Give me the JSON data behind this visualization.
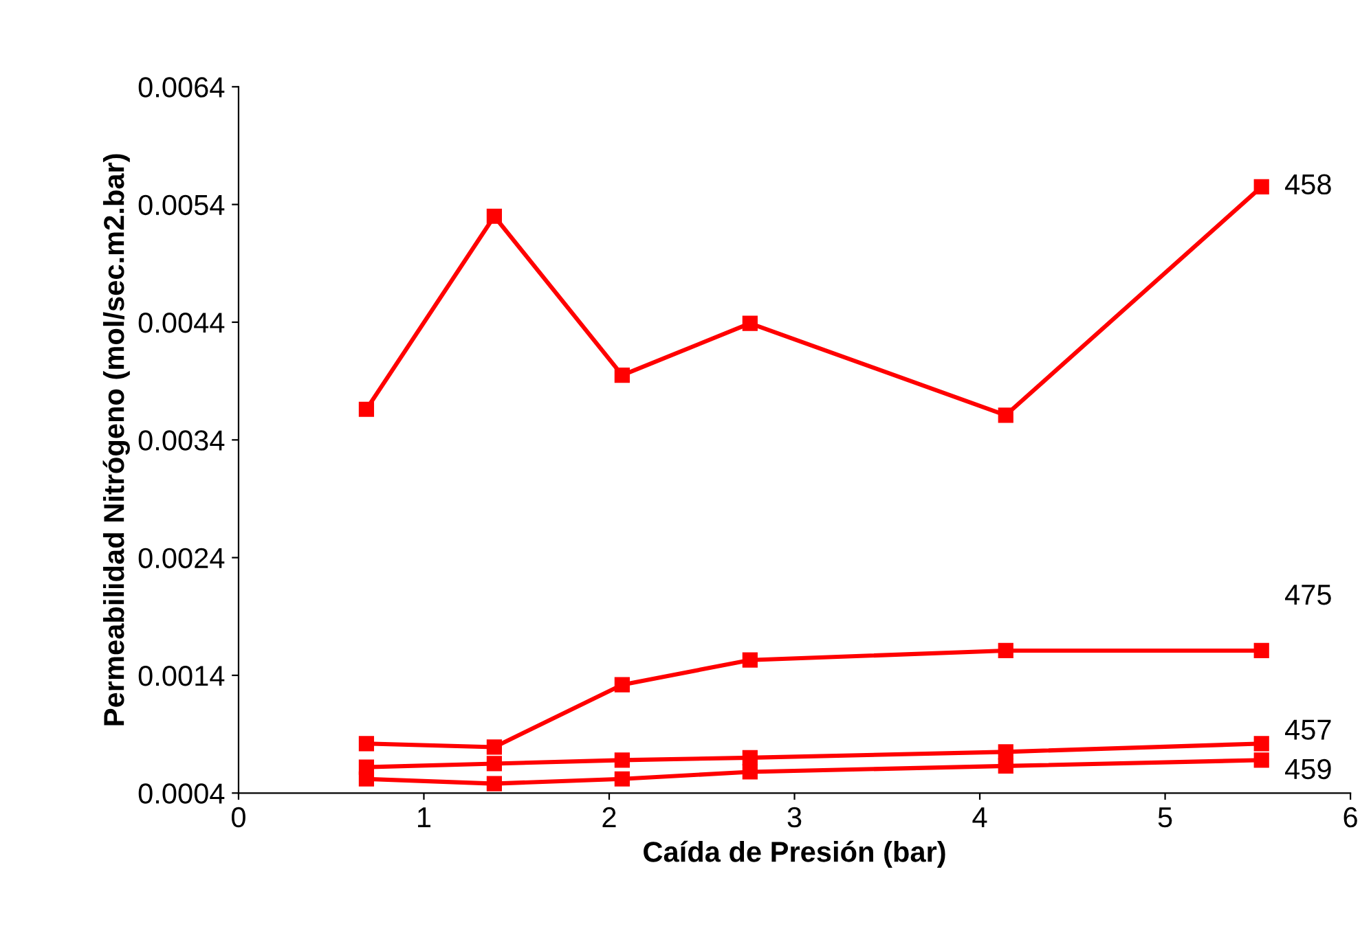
{
  "chart_data": {
    "type": "line",
    "xlabel": "Caída de Presión (bar)",
    "ylabel": "Permeabilidad Nitrógeno (mol/sec.m2.bar)",
    "x": [
      0.69,
      1.38,
      2.07,
      2.76,
      4.14,
      5.52
    ],
    "series": [
      {
        "name": "458",
        "color": "#ff0000",
        "values": [
          0.00366,
          0.0053,
          0.00395,
          0.00439,
          0.00361,
          0.00555
        ]
      },
      {
        "name": "475",
        "color": "#ff0000",
        "values": [
          0.00082,
          0.00079,
          0.00132,
          0.00153,
          0.00161,
          0.00161
        ]
      },
      {
        "name": "457",
        "color": "#ff0000",
        "values": [
          0.00062,
          0.00065,
          0.00068,
          0.0007,
          0.00075,
          0.00082
        ]
      },
      {
        "name": "459",
        "color": "#ff0000",
        "values": [
          0.00052,
          0.00048,
          0.00052,
          0.00058,
          0.00063,
          0.00068
        ]
      }
    ],
    "xlim": [
      0,
      6
    ],
    "xticks": [
      0,
      1,
      2,
      3,
      4,
      5,
      6
    ],
    "ylim": [
      0.0004,
      0.0064
    ],
    "yticks": [
      {
        "value": 0.0004,
        "label": "0.0004"
      },
      {
        "value": 0.0014,
        "label": "0.0014"
      },
      {
        "value": 0.0024,
        "label": "0.0024"
      },
      {
        "value": 0.0034,
        "label": "0.0034"
      },
      {
        "value": 0.0044,
        "label": "0.0044"
      },
      {
        "value": 0.0054,
        "label": "0.0054"
      },
      {
        "value": 0.0064,
        "label": "0.0064"
      }
    ],
    "marker": "square",
    "line_style": "solid",
    "grid": false,
    "legend": false
  }
}
